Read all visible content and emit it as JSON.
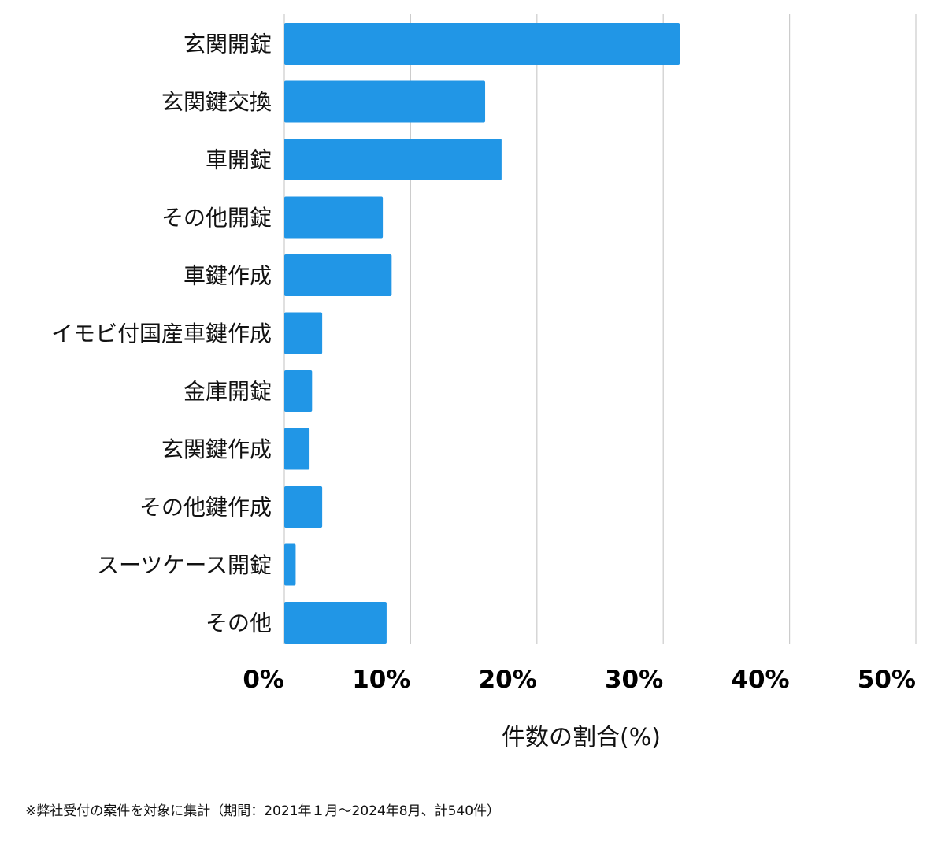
{
  "chart_data": {
    "type": "bar",
    "orientation": "horizontal",
    "categories": [
      "玄関開錠",
      "玄関鍵交換",
      "車開錠",
      "その他開錠",
      "車鍵作成",
      "イモビ付国産車鍵作成",
      "金庫開錠",
      "玄関鍵作成",
      "その他鍵作成",
      "スーツケース開錠",
      "その他"
    ],
    "values": [
      31.3,
      15.9,
      17.2,
      7.8,
      8.5,
      3.0,
      2.2,
      2.0,
      3.0,
      0.9,
      8.1
    ],
    "xlabel": "件数の割合(%)",
    "ylabel": "",
    "xlim": [
      0,
      50
    ],
    "x_ticks": [
      0,
      10,
      20,
      30,
      40,
      50
    ],
    "x_tick_labels": [
      "0%",
      "10%",
      "20%",
      "30%",
      "40%",
      "50%"
    ],
    "grid": true,
    "bar_color": "#2196e6",
    "grid_color": "#cccccc"
  },
  "footnote": "※弊社受付の案件を対象に集計（期間：2021年１月〜2024年8月、計540件）"
}
